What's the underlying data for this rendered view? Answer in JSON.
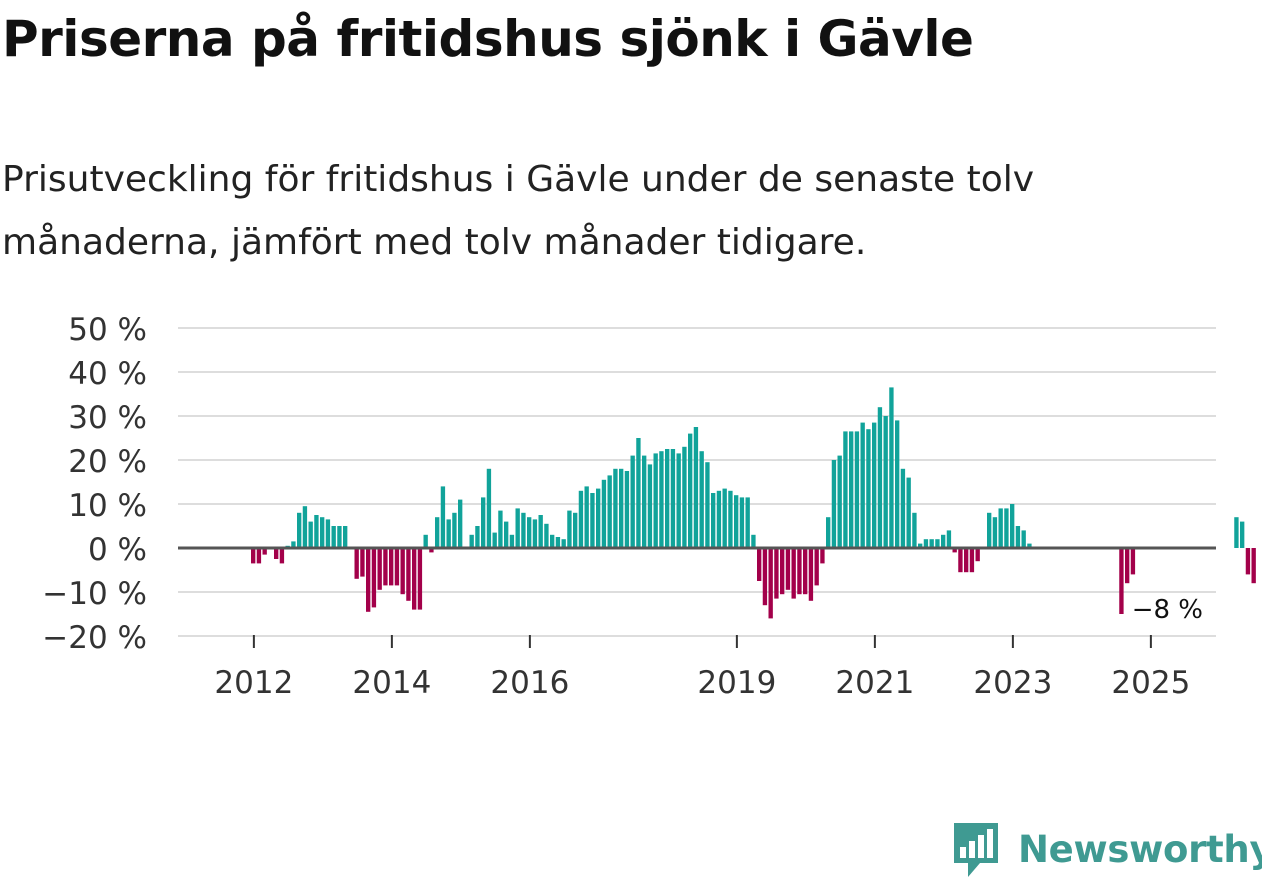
{
  "header": {
    "title": "Priserna på fritidshus sjönk i Gävle",
    "subtitle": "Prisutveckling för fritidshus i Gävle under de senaste tolv månaderna, jämfört med tolv månader tidigare."
  },
  "brand": {
    "name": "Newsworthy",
    "icon": "newsworthy-logo-icon"
  },
  "colors": {
    "positive": "#11a39a",
    "negative": "#a3004a",
    "grid": "#dddddd",
    "zero": "#555555"
  },
  "chart_data": {
    "type": "bar",
    "x_start": "2011-01",
    "frequency": "monthly",
    "ylim": [
      -20,
      50
    ],
    "yticks": [
      -20,
      -10,
      0,
      10,
      20,
      30,
      40,
      50
    ],
    "ytick_labels": [
      "−20 %",
      "−10 %",
      "0 %",
      "10 %",
      "20 %",
      "30 %",
      "40 %",
      "50 %"
    ],
    "xtick_labels": [
      {
        "label": "2012",
        "year": 2012
      },
      {
        "label": "2014",
        "year": 2014
      },
      {
        "label": "2016",
        "year": 2016
      },
      {
        "label": "2019",
        "year": 2019
      },
      {
        "label": "2021",
        "year": 2021
      },
      {
        "label": "2023",
        "year": 2023
      },
      {
        "label": "2025",
        "year": 2025
      }
    ],
    "values": [
      null,
      null,
      null,
      null,
      null,
      null,
      null,
      null,
      null,
      null,
      null,
      null,
      -3.5,
      -3.5,
      -1.5,
      null,
      -2.5,
      -3.5,
      0.5,
      1.5,
      8,
      9.5,
      6,
      7.5,
      7,
      6.5,
      5,
      5,
      5,
      null,
      -7,
      -6.5,
      -14.5,
      -13.5,
      -9.5,
      -8.5,
      -8.5,
      -8.5,
      -10.5,
      -12,
      -14,
      -14,
      3,
      -1,
      7,
      14,
      6.5,
      8,
      11,
      null,
      3,
      5,
      11.5,
      18,
      3.5,
      8.5,
      6,
      3,
      9,
      8,
      7,
      6.5,
      7.5,
      5.5,
      3,
      2.5,
      2,
      8.5,
      8,
      13,
      14,
      12.5,
      13.5,
      15.5,
      16.5,
      18,
      18,
      17.5,
      21,
      25,
      21,
      19,
      21.5,
      22,
      22.5,
      22.5,
      21.5,
      23,
      26,
      27.5,
      22,
      19.5,
      12.5,
      13,
      13.5,
      13,
      12,
      11.5,
      11.5,
      3,
      -7.5,
      -13,
      -16,
      -11.5,
      -10.5,
      -9.5,
      -11.5,
      -10.5,
      -10.5,
      -12,
      -8.5,
      -3.5,
      7,
      20,
      21,
      26.5,
      26.5,
      26.5,
      28.5,
      27,
      28.5,
      32,
      30,
      36.5,
      29,
      18,
      16,
      8,
      1,
      2,
      2,
      2,
      3,
      4,
      -1,
      -5.5,
      -5.5,
      -5.5,
      -3,
      null,
      8,
      7,
      9,
      9,
      10,
      5,
      4,
      1,
      null,
      null,
      null,
      null,
      null,
      null,
      null,
      null,
      null,
      null,
      null,
      null,
      null,
      null,
      null,
      -15,
      -8,
      -6,
      null,
      null,
      null,
      null,
      null,
      null,
      null,
      null,
      null,
      null,
      null,
      null,
      null,
      null,
      null,
      null,
      null,
      7,
      6,
      -6,
      -8
    ],
    "annotation": {
      "label": "−8 %",
      "value": -8
    }
  }
}
